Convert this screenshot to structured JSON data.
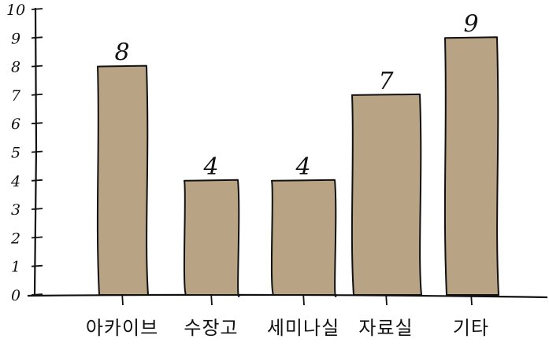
{
  "chart_data": {
    "type": "bar",
    "categories": [
      "아카이브",
      "수장고",
      "세미나실",
      "자료실",
      "기타"
    ],
    "values": [
      8,
      4,
      4,
      7,
      9
    ],
    "data_labels": [
      "8",
      "4",
      "4",
      "7",
      "9"
    ],
    "ylim": [
      0,
      10
    ],
    "yticks": [
      "0",
      "1",
      "2",
      "3",
      "4",
      "5",
      "6",
      "7",
      "8",
      "9",
      "10"
    ],
    "title": "",
    "xlabel": "",
    "ylabel": "",
    "grid": false,
    "legend": "none",
    "colors": {
      "bar_fill": "#b9a385",
      "bar_stroke": "#111111",
      "axis": "#111111"
    }
  }
}
